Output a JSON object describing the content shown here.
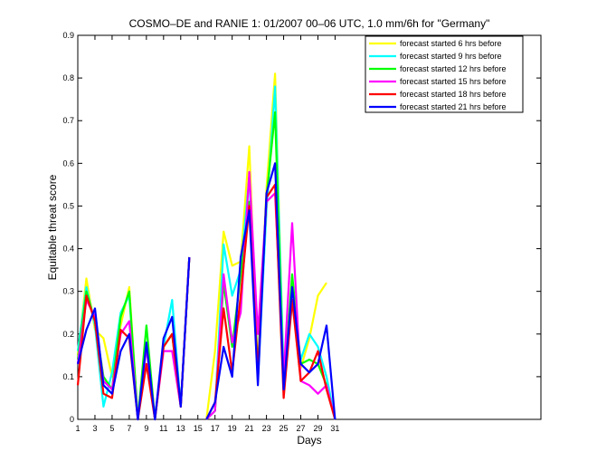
{
  "chart_data": {
    "type": "line",
    "title": "COSMO–DE and RANIE 1: 01/2007 00–06 UTC, 1.0 mm/6h for \"Germany\"",
    "xlabel": "Days",
    "ylabel": "Equitable threat score",
    "xlim": [
      1,
      55
    ],
    "ylim": [
      0,
      0.9
    ],
    "x_ticks": [
      1,
      3,
      5,
      7,
      9,
      11,
      13,
      15,
      17,
      19,
      21,
      23,
      25,
      27,
      29,
      31
    ],
    "y_ticks": [
      0,
      0.1,
      0.2,
      0.3,
      0.4,
      0.5,
      0.6,
      0.7,
      0.8,
      0.9
    ],
    "y_tick_labels": [
      "0",
      "0.1",
      "0.2",
      "0.3",
      "0.4",
      "0.5",
      "0.6",
      "0.7",
      "0.8",
      "0.9"
    ],
    "grid": false,
    "legend_position": "top-right",
    "x": [
      1,
      2,
      3,
      4,
      5,
      6,
      7,
      8,
      9,
      10,
      11,
      12,
      13,
      14,
      15,
      16,
      17,
      18,
      19,
      20,
      21,
      22,
      23,
      24,
      25,
      26,
      27,
      28,
      29,
      30,
      31
    ],
    "series": [
      {
        "name": "forecast started 6 hrs before",
        "color": "#ffff00",
        "values": [
          0.15,
          0.33,
          0.21,
          0.19,
          0.1,
          0.22,
          0.31,
          0.0,
          0.17,
          0.0,
          0.17,
          0.2,
          0.03,
          0.38,
          null,
          0.0,
          0.16,
          0.44,
          0.36,
          0.37,
          0.64,
          0.1,
          0.54,
          0.81,
          0.1,
          0.31,
          0.12,
          0.19,
          0.29,
          0.32,
          null
        ]
      },
      {
        "name": "forecast started 9 hrs before",
        "color": "#00ffff",
        "values": [
          0.16,
          0.31,
          0.22,
          0.03,
          0.11,
          0.25,
          0.29,
          0.0,
          0.17,
          0.0,
          0.17,
          0.28,
          0.03,
          0.38,
          null,
          0.0,
          0.02,
          0.41,
          0.29,
          0.35,
          0.57,
          0.09,
          0.49,
          0.78,
          0.1,
          0.27,
          0.14,
          0.2,
          0.17,
          0.1,
          0.0
        ]
      },
      {
        "name": "forecast started 12 hrs before",
        "color": "#00ff00",
        "values": [
          0.14,
          0.3,
          0.23,
          0.1,
          0.07,
          0.24,
          0.3,
          0.0,
          0.22,
          0.0,
          0.17,
          0.2,
          0.03,
          0.38,
          null,
          0.0,
          0.02,
          0.32,
          0.17,
          0.34,
          0.51,
          0.12,
          0.52,
          0.72,
          0.07,
          0.34,
          0.13,
          0.14,
          0.13,
          0.08,
          0.0
        ]
      },
      {
        "name": "forecast started 15 hrs before",
        "color": "#ff00ff",
        "values": [
          0.13,
          0.28,
          0.24,
          0.09,
          0.07,
          0.2,
          0.23,
          0.0,
          0.17,
          0.0,
          0.16,
          0.16,
          0.03,
          0.38,
          null,
          0.0,
          0.02,
          0.34,
          0.18,
          0.25,
          0.58,
          0.2,
          0.51,
          0.53,
          0.1,
          0.46,
          0.09,
          0.08,
          0.06,
          0.08,
          0.0
        ]
      },
      {
        "name": "forecast started 18 hrs before",
        "color": "#ff0000",
        "values": [
          0.08,
          0.29,
          0.23,
          0.06,
          0.05,
          0.21,
          0.19,
          0.0,
          0.13,
          0.0,
          0.17,
          0.2,
          0.03,
          0.38,
          null,
          0.0,
          0.04,
          0.26,
          0.11,
          0.29,
          0.5,
          0.11,
          0.52,
          0.55,
          0.05,
          0.28,
          0.09,
          0.11,
          0.16,
          0.07,
          0.0
        ]
      },
      {
        "name": "forecast started 21 hrs before",
        "color": "#0000ff",
        "values": [
          0.13,
          0.21,
          0.26,
          0.08,
          0.06,
          0.16,
          0.2,
          0.0,
          0.18,
          0.0,
          0.19,
          0.24,
          0.03,
          0.38,
          null,
          0.0,
          0.04,
          0.17,
          0.1,
          0.38,
          0.49,
          0.08,
          0.53,
          0.6,
          0.07,
          0.31,
          0.13,
          0.11,
          0.13,
          0.22,
          0.0
        ]
      }
    ]
  }
}
